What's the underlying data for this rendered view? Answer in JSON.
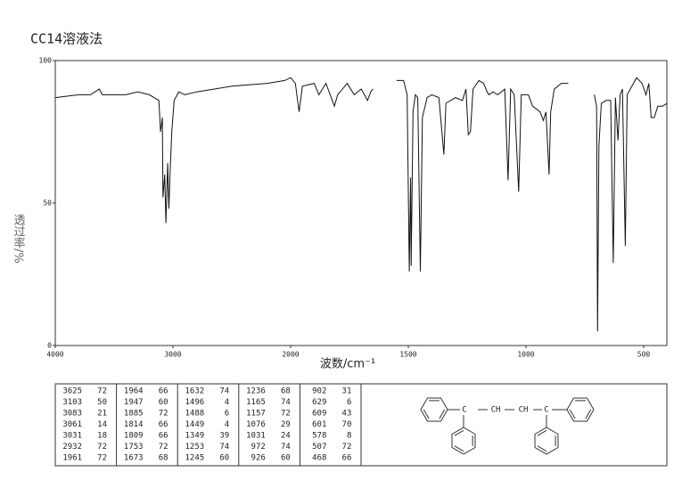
{
  "chart_data": {
    "type": "line",
    "title": "CC14溶液法",
    "x_label": "波数/cm⁻¹",
    "y_label": "透过率/%",
    "xlim": [
      4000,
      400
    ],
    "ylim": [
      0,
      100
    ],
    "xticks": [
      4000,
      3000,
      2000,
      1500,
      1000,
      500
    ],
    "yticks": [
      0,
      50,
      100
    ],
    "color": "#111111",
    "x": [
      4000,
      3800,
      3700,
      3626,
      3600,
      3400,
      3300,
      3200,
      3120,
      3105,
      3090,
      3085,
      3070,
      3060,
      3045,
      3035,
      3025,
      3010,
      2990,
      2950,
      2900,
      2800,
      2500,
      2200,
      2050,
      2000,
      1980,
      1964,
      1950,
      1900,
      1880,
      1850,
      1814,
      1800,
      1760,
      1730,
      1700,
      1673,
      1660,
      1650,
      null,
      1550,
      1520,
      1505,
      1496,
      1490,
      1488,
      1480,
      1470,
      1460,
      1449,
      1440,
      1420,
      1400,
      1370,
      1349,
      1340,
      1300,
      1270,
      1255,
      1245,
      1236,
      1225,
      1200,
      1180,
      1165,
      1157,
      1140,
      1120,
      1090,
      1076,
      1065,
      1050,
      1031,
      1020,
      990,
      972,
      940,
      926,
      915,
      902,
      895,
      880,
      850,
      820,
      null,
      710,
      700,
      696,
      690,
      680,
      660,
      640,
      629,
      620,
      609,
      600,
      590,
      578,
      570,
      550,
      530,
      507,
      490,
      478,
      468,
      455,
      440,
      420,
      400
    ],
    "values": [
      87,
      88,
      88,
      90,
      88,
      88,
      89,
      88,
      86,
      75,
      80,
      52,
      60,
      43,
      64,
      48,
      60,
      75,
      86,
      89,
      88,
      89,
      91,
      92,
      93,
      94,
      92,
      82,
      91,
      92,
      88,
      92,
      84,
      88,
      92,
      88,
      90,
      86,
      89,
      90,
      null,
      93,
      93,
      88,
      26,
      59,
      28,
      82,
      88,
      87,
      26,
      80,
      87,
      88,
      87,
      67,
      85,
      87,
      86,
      90,
      74,
      75,
      90,
      93,
      92,
      89,
      88,
      89,
      88,
      90,
      58,
      90,
      88,
      54,
      88,
      88,
      84,
      82,
      79,
      82,
      60,
      82,
      90,
      92,
      92,
      null,
      88,
      84,
      5,
      70,
      85,
      86,
      86,
      29,
      87,
      72,
      88,
      90,
      35,
      88,
      91,
      94,
      92,
      88,
      92,
      80,
      80,
      84,
      84,
      85
    ]
  },
  "peak_table": [
    [
      [
        3625,
        72
      ],
      [
        3103,
        50
      ],
      [
        3083,
        21
      ],
      [
        3061,
        14
      ],
      [
        3031,
        18
      ],
      [
        2932,
        72
      ],
      [
        1961,
        72
      ]
    ],
    [
      [
        1964,
        66
      ],
      [
        1947,
        60
      ],
      [
        1885,
        72
      ],
      [
        1814,
        66
      ],
      [
        1809,
        66
      ],
      [
        1753,
        72
      ],
      [
        1673,
        68
      ]
    ],
    [
      [
        1632,
        74
      ],
      [
        1496,
        4
      ],
      [
        1488,
        6
      ],
      [
        1449,
        4
      ],
      [
        1349,
        39
      ],
      [
        1253,
        74
      ],
      [
        1245,
        60
      ]
    ],
    [
      [
        1236,
        68
      ],
      [
        1165,
        74
      ],
      [
        1157,
        72
      ],
      [
        1076,
        29
      ],
      [
        1031,
        24
      ],
      [
        972,
        74
      ],
      [
        926,
        60
      ]
    ],
    [
      [
        902,
        31
      ],
      [
        629,
        6
      ],
      [
        609,
        43
      ],
      [
        601,
        70
      ],
      [
        578,
        8
      ],
      [
        507,
        72
      ],
      [
        468,
        66
      ]
    ]
  ],
  "structure": {
    "labels": [
      "C",
      "CH",
      "CH",
      "C"
    ]
  }
}
